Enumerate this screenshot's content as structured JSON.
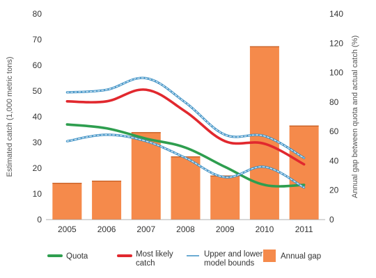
{
  "chart_data": {
    "type": "bar+line",
    "categories": [
      "2005",
      "2006",
      "2007",
      "2008",
      "2009",
      "2010",
      "2011"
    ],
    "y_left": {
      "label": "Estimated catch (1,000 metric tons)",
      "ticks": [
        0,
        10,
        20,
        30,
        40,
        50,
        60,
        70,
        80
      ],
      "lim": [
        0,
        80
      ]
    },
    "y_right": {
      "label": "Annual gap between quota and actual catch (%)",
      "ticks": [
        0,
        20,
        40,
        60,
        80,
        100,
        120,
        140
      ],
      "lim": [
        0,
        140
      ]
    },
    "bars": {
      "name": "Annual gap",
      "axis": "right",
      "color": "#f58a4b",
      "values": [
        25,
        26.5,
        59.5,
        43,
        30,
        118,
        64
      ]
    },
    "series": [
      {
        "name": "Quota",
        "axis": "left",
        "color": "#2e9e4f",
        "style": "solid",
        "values": [
          37,
          35.5,
          31.5,
          28,
          20.5,
          13.5,
          13.5
        ]
      },
      {
        "name": "Most likely catch",
        "axis": "left",
        "color": "#e1282e",
        "style": "solid",
        "values": [
          46,
          46,
          50.5,
          42,
          30.5,
          29.5,
          21.5
        ]
      },
      {
        "name": "Upper and lower model bounds",
        "axis": "left",
        "color": "#3a8fc4",
        "style": "double",
        "values": [
          49.5,
          50.5,
          55,
          45.5,
          33,
          32.5,
          24
        ]
      },
      {
        "name": "Upper and lower model bounds",
        "axis": "left",
        "color": "#3a8fc4",
        "style": "double",
        "values": [
          30.5,
          33,
          30.5,
          24,
          16.5,
          20.5,
          12.5
        ],
        "legend": false
      }
    ],
    "legend": {
      "position": "bottom",
      "items": [
        {
          "line1": "Quota",
          "line2": "",
          "kind": "line",
          "color": "#2e9e4f"
        },
        {
          "line1": "Most likely",
          "line2": "catch",
          "kind": "line",
          "color": "#e1282e"
        },
        {
          "line1": "Upper and lower",
          "line2": "model bounds",
          "kind": "thin-line",
          "color": "#3a8fc4"
        },
        {
          "line1": "Annual gap",
          "line2": "",
          "kind": "box",
          "color": "#f58a4b"
        }
      ]
    },
    "grid": false
  }
}
